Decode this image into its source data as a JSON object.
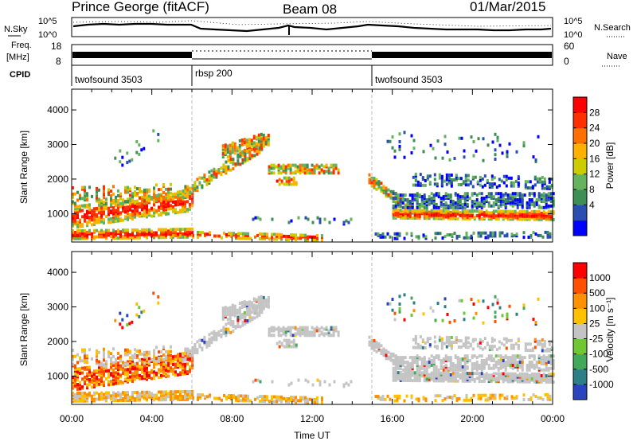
{
  "header": {
    "station": "Prince George (fitACF)",
    "beam": "Beam 08",
    "date": "01/Mar/2015"
  },
  "strip_labels": {
    "nsky": "N.Sky",
    "nsky_ticks": [
      "10^5",
      "10^0"
    ],
    "freq": "Freq.",
    "freq_unit": "[MHz]",
    "freq_ticks": [
      "18",
      "8"
    ],
    "cpid": "CPID",
    "nsearch": "N.Search",
    "nsearch_ticks": [
      "10^5",
      "10^0"
    ],
    "nave": "Nave",
    "nave_ticks": [
      "60",
      "0"
    ]
  },
  "cpid_segments": [
    {
      "label": "twofsound 3503",
      "start_h": 0,
      "end_h": 6
    },
    {
      "label": "rbsp 200",
      "start_h": 6,
      "end_h": 15
    },
    {
      "label": "twofsound 3503",
      "start_h": 15,
      "end_h": 24
    }
  ],
  "chart_data": [
    {
      "type": "heatmap",
      "name": "power",
      "ylabel": "Slant Range [km]",
      "xlabel": "",
      "xlim": [
        0,
        24
      ],
      "ylim": [
        180,
        4600
      ],
      "yticks": [
        1000,
        2000,
        3000,
        4000
      ],
      "colorbar": {
        "label": "Power [dB]",
        "ticks": [
          "28",
          "24",
          "20",
          "16",
          "12",
          "8",
          "4"
        ],
        "colors": [
          "#0000ff",
          "#2a4fb0",
          "#3d8f56",
          "#66b35e",
          "#cccc00",
          "#ffb000",
          "#ff7000",
          "#ff3000",
          "#ff0000"
        ]
      }
    },
    {
      "type": "heatmap",
      "name": "velocity",
      "ylabel": "Slant Range [km]",
      "xlabel": "Time UT",
      "xlim": [
        0,
        24
      ],
      "ylim": [
        180,
        4600
      ],
      "yticks": [
        1000,
        2000,
        3000,
        4000
      ],
      "xticks": [
        "00:00",
        "04:00",
        "08:00",
        "12:00",
        "16:00",
        "20:00",
        "00:00"
      ],
      "colorbar": {
        "label": "Velocity [m s⁻¹]",
        "ticks": [
          "1000",
          "500",
          "100",
          "25",
          "-25",
          "-100",
          "-500",
          "-1000"
        ],
        "colors": [
          "#2a44c0",
          "#2c7f86",
          "#42a85a",
          "#6ec834",
          "#c4c4c4",
          "#ffc000",
          "#ff9000",
          "#ff5000",
          "#ff0000"
        ]
      }
    }
  ]
}
